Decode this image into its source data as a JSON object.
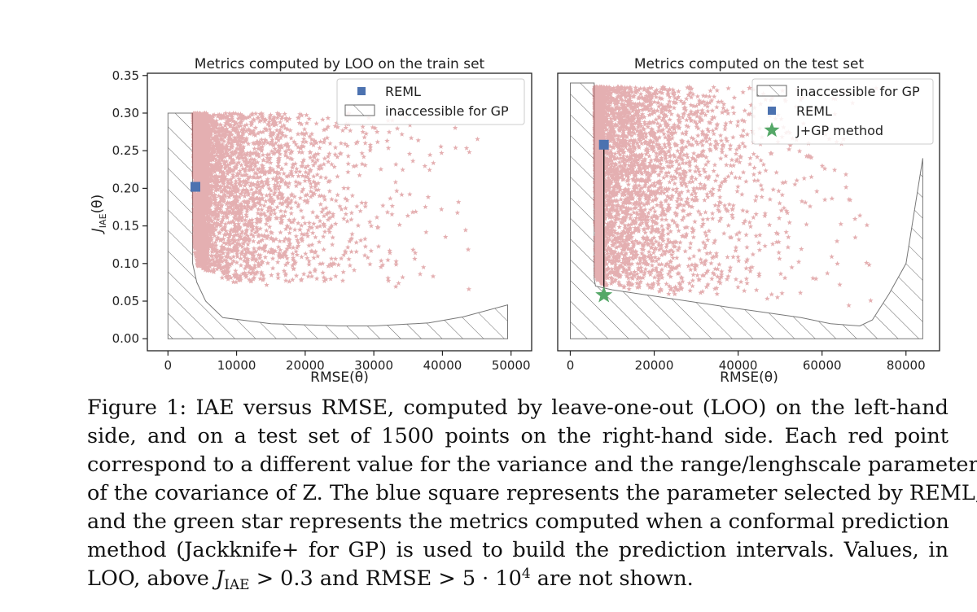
{
  "chart_data": [
    {
      "type": "scatter",
      "title": "Metrics computed by LOO on the train set",
      "xlabel": "RMSE(θ)",
      "ylabel": "J_IAE(θ)",
      "xlim": [
        -3000,
        53000
      ],
      "ylim": [
        -0.016,
        0.353
      ],
      "xticks": [
        "0",
        "10000",
        "20000",
        "30000",
        "40000",
        "50000"
      ],
      "yticks": [
        "0.00",
        "0.05",
        "0.10",
        "0.15",
        "0.20",
        "0.25",
        "0.30",
        "0.35"
      ],
      "grid": false,
      "legend_position": "top-right",
      "legend": [
        "REML",
        "inaccessible for GP"
      ],
      "series": [
        {
          "name": "REML",
          "marker": "square",
          "color": "#4c72b0",
          "points": [
            [
              4000,
              0.202
            ]
          ]
        },
        {
          "name": "",
          "marker": "star",
          "color": "#c44e52",
          "density_envelope": {
            "lower_boundary": [
              [
                3700,
                0.3
              ],
              [
                3800,
                0.12
              ],
              [
                4300,
                0.097
              ],
              [
                7000,
                0.083
              ],
              [
                12000,
                0.068
              ],
              [
                20000,
                0.078
              ],
              [
                28000,
                0.07
              ],
              [
                34000,
                0.06
              ],
              [
                40000,
                0.05
              ],
              [
                50000,
                0.045
              ]
            ],
            "upper_y": 0.3,
            "x_range": [
              3700,
              50000
            ]
          }
        }
      ],
      "inaccessible_region": {
        "name": "inaccessible for GP",
        "boundary": [
          [
            0,
            0.0
          ],
          [
            0,
            0.3
          ],
          [
            3600,
            0.3
          ],
          [
            3600,
            0.1
          ],
          [
            4200,
            0.075
          ],
          [
            5500,
            0.05
          ],
          [
            8000,
            0.028
          ],
          [
            15000,
            0.02
          ],
          [
            25000,
            0.017
          ],
          [
            30000,
            0.017
          ],
          [
            38000,
            0.021
          ],
          [
            43000,
            0.029
          ],
          [
            49500,
            0.045
          ],
          [
            49500,
            0.0
          ]
        ]
      }
    },
    {
      "type": "scatter",
      "title": "Metrics computed on the test set",
      "xlabel": "RMSE(θ)",
      "ylabel": "",
      "xlim": [
        -3000,
        88000
      ],
      "ylim": [
        -0.016,
        0.353
      ],
      "xticks": [
        "0",
        "20000",
        "40000",
        "60000",
        "80000"
      ],
      "yticks": [],
      "grid": false,
      "legend_position": "top-right",
      "legend": [
        "inaccessible for GP",
        "REML",
        "J+GP method"
      ],
      "series": [
        {
          "name": "REML",
          "marker": "square",
          "color": "#4c72b0",
          "points": [
            [
              8000,
              0.258
            ]
          ]
        },
        {
          "name": "J+GP method",
          "marker": "star",
          "color": "#55a868",
          "points": [
            [
              8000,
              0.058
            ]
          ]
        },
        {
          "name": "",
          "marker": "star",
          "color": "#c44e52",
          "density_envelope": {
            "lower_boundary": [
              [
                5800,
                0.33
              ],
              [
                6000,
                0.08
              ],
              [
                8000,
                0.07
              ],
              [
                20000,
                0.06
              ],
              [
                40000,
                0.055
              ],
              [
                60000,
                0.04
              ],
              [
                70000,
                0.035
              ],
              [
                78000,
                0.06
              ],
              [
                84000,
                0.1
              ]
            ],
            "upper_y": 0.335,
            "x_range": [
              5800,
              84000
            ]
          }
        }
      ],
      "inaccessible_region": {
        "name": "inaccessible for GP",
        "boundary": [
          [
            0,
            0.0
          ],
          [
            0,
            0.34
          ],
          [
            5700,
            0.34
          ],
          [
            5700,
            0.08
          ],
          [
            6000,
            0.07
          ],
          [
            10000,
            0.065
          ],
          [
            40000,
            0.04
          ],
          [
            55000,
            0.028
          ],
          [
            62000,
            0.02
          ],
          [
            69000,
            0.017
          ],
          [
            72000,
            0.025
          ],
          [
            76000,
            0.06
          ],
          [
            80000,
            0.1
          ],
          [
            84000,
            0.24
          ],
          [
            84000,
            0.0
          ]
        ]
      }
    }
  ],
  "caption": {
    "lines": [
      "Figure 1: IAE versus RMSE, computed by leave-one-out (LOO) on the left-hand",
      "side, and on a test set of 1500 points on the right-hand side.  Each red point",
      "correspond to a different value for the variance and the range/lenghscale parameters",
      "of the covariance of Z. The blue square represents the parameter selected by REML,",
      "and the green star represents the metrics computed when a conformal prediction",
      "method (Jackknife+ for GP) is used to build the prediction intervals. Values, in"
    ],
    "last_line": {
      "prefix": "LOO, above ",
      "symbol": "J",
      "subscript": "IAE",
      "suffix": " > 0.3 and RMSE > 5 · 10",
      "exponent": "4",
      "end": " are not shown."
    }
  }
}
